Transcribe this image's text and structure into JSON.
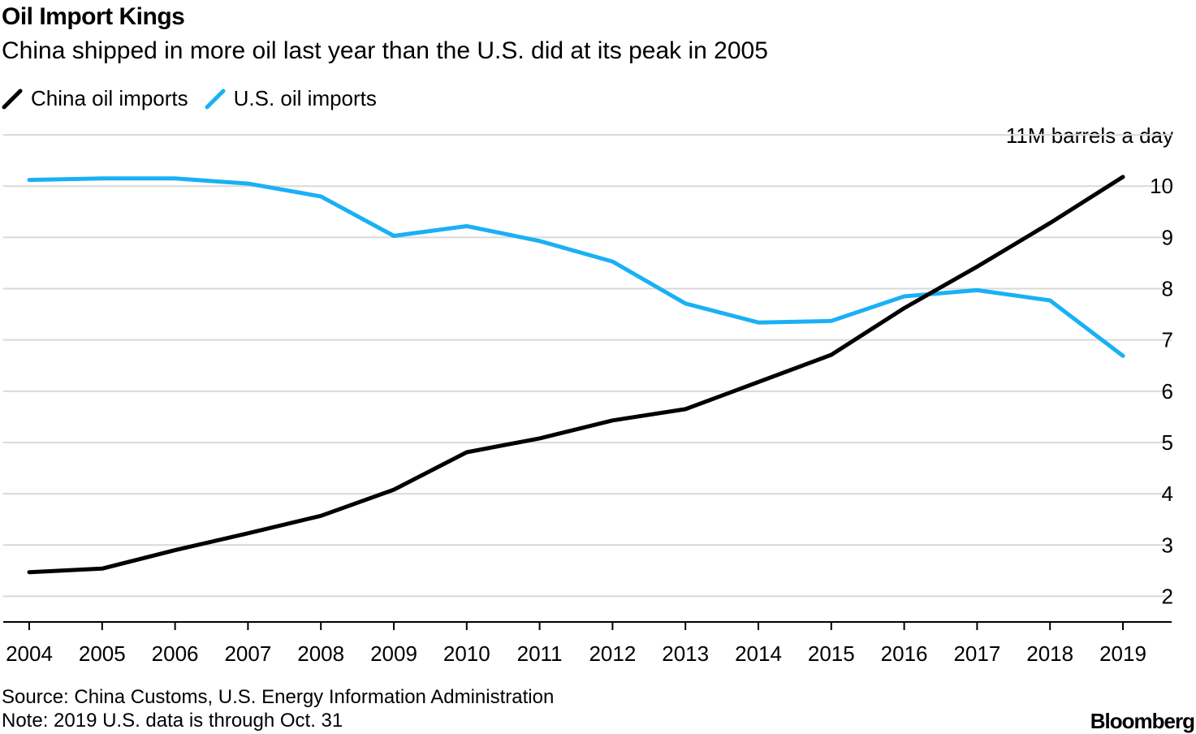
{
  "header": {
    "title": "Oil Import Kings",
    "subtitle": "China shipped in more oil last year than the U.S. did at its peak in 2005"
  },
  "footer": {
    "source": "Source: China Customs, U.S. Energy Information Administration",
    "note": "Note: 2019 U.S. data is through Oct. 31",
    "logo": "Bloomberg"
  },
  "colors": {
    "china": "#000000",
    "us": "#1ab0f5",
    "grid": "#d9d9d9",
    "axis": "#000000"
  },
  "chart_data": {
    "type": "line",
    "title": "Oil Import Kings",
    "unit_label": "11M barrels a day",
    "xlabel": "",
    "ylabel": "",
    "ylim": [
      1.5,
      11
    ],
    "y_ticks": [
      {
        "value": 10,
        "label": "10"
      },
      {
        "value": 9,
        "label": "9"
      },
      {
        "value": 8,
        "label": "8"
      },
      {
        "value": 7,
        "label": "7"
      },
      {
        "value": 6,
        "label": "6"
      },
      {
        "value": 5,
        "label": "5"
      },
      {
        "value": 4,
        "label": "4"
      },
      {
        "value": 3,
        "label": "3"
      },
      {
        "value": 2,
        "label": "2"
      }
    ],
    "grid_values": [
      2,
      3,
      4,
      5,
      6,
      7,
      8,
      9,
      10,
      11
    ],
    "grid": true,
    "legend_position": "top-left",
    "categories": [
      "2004",
      "2005",
      "2006",
      "2007",
      "2008",
      "2009",
      "2010",
      "2011",
      "2012",
      "2013",
      "2014",
      "2015",
      "2016",
      "2017",
      "2018",
      "2019"
    ],
    "series": [
      {
        "name": "China oil imports",
        "key": "china",
        "values": [
          2.47,
          2.54,
          2.9,
          3.23,
          3.57,
          4.08,
          4.81,
          5.08,
          5.43,
          5.65,
          6.18,
          6.71,
          7.62,
          8.43,
          9.28,
          10.18
        ]
      },
      {
        "name": "U.S. oil imports",
        "key": "us",
        "values": [
          10.12,
          10.15,
          10.15,
          10.05,
          9.8,
          9.03,
          9.22,
          8.93,
          8.53,
          7.71,
          7.34,
          7.37,
          7.85,
          7.97,
          7.77,
          6.69
        ]
      }
    ]
  }
}
